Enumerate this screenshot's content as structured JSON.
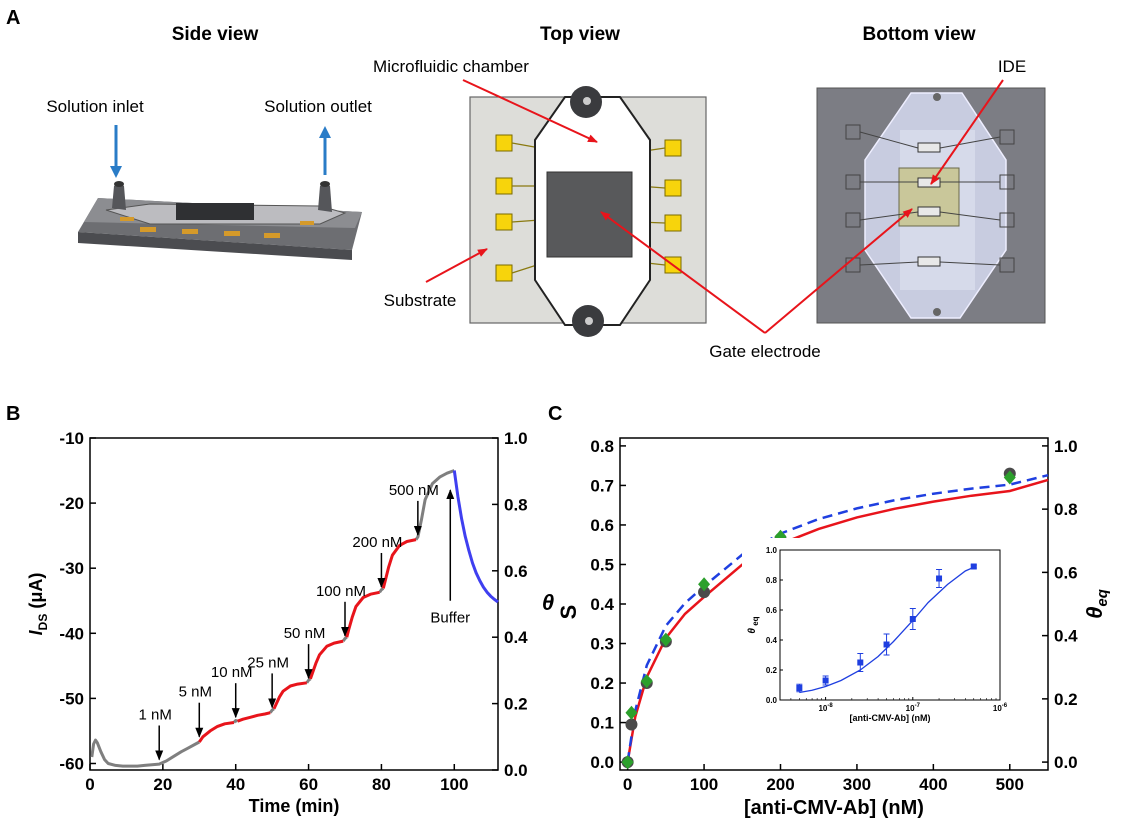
{
  "panel_a": {
    "label": "A",
    "side_view": {
      "title": "Side view",
      "inlet": "Solution inlet",
      "outlet": "Solution outlet"
    },
    "top_view": {
      "title": "Top view",
      "chamber": "Microfluidic chamber",
      "substrate": "Substrate",
      "gate": "Gate electrode"
    },
    "bottom_view": {
      "title": "Bottom view",
      "ide": "IDE"
    }
  },
  "panel_b": {
    "label": "B"
  },
  "panel_c": {
    "label": "C"
  },
  "chart_data": [
    {
      "type": "line",
      "panel": "B",
      "xlabel": "Time (min)",
      "ylabel_main": "I",
      "ylabel_sub": "DS",
      "ylabel_unit": " (μA)",
      "ylabel_right": "θ",
      "xlim": [
        0,
        112
      ],
      "ylim": [
        -61,
        -10
      ],
      "y2lim": [
        0,
        1.0
      ],
      "x_ticks": [
        "0",
        "20",
        "40",
        "60",
        "80",
        "100"
      ],
      "x_tick_values": [
        0,
        20,
        40,
        60,
        80,
        100
      ],
      "y_ticks": [
        "-60",
        "-50",
        "-40",
        "-30",
        "-20",
        "-10"
      ],
      "y_tick_values": [
        -60,
        -50,
        -40,
        -30,
        -20,
        -10
      ],
      "y2_ticks": [
        "0.0",
        "0.2",
        "0.4",
        "0.6",
        "0.8",
        "1.0"
      ],
      "y2_tick_values": [
        0,
        0.2,
        0.4,
        0.6,
        0.8,
        1.0
      ],
      "annotations": [
        {
          "text": "1 nM",
          "x": 19,
          "y": -60.0
        },
        {
          "text": "5 nM",
          "x": 30,
          "y": -56.5
        },
        {
          "text": "10 nM",
          "x": 40,
          "y": -53.5
        },
        {
          "text": "25 nM",
          "x": 50,
          "y": -52.0
        },
        {
          "text": "50 nM",
          "x": 60,
          "y": -47.5
        },
        {
          "text": "100 nM",
          "x": 70,
          "y": -41.0
        },
        {
          "text": "200 nM",
          "x": 80,
          "y": -33.5
        },
        {
          "text": "500 nM",
          "x": 90,
          "y": -25.5
        },
        {
          "text": "Buffer",
          "x": 100,
          "y": -17
        }
      ],
      "series": [
        {
          "color": "#7f7f7f",
          "segments": [
            [
              [
                0.5,
                -59
              ],
              [
                1,
                -57
              ],
              [
                1.5,
                -56.4
              ],
              [
                2,
                -56.8
              ],
              [
                3,
                -58.2
              ],
              [
                4,
                -59.4
              ],
              [
                5,
                -60.0
              ],
              [
                7,
                -60.3
              ],
              [
                9,
                -60.4
              ],
              [
                11,
                -60.4
              ],
              [
                13,
                -60.4
              ],
              [
                15,
                -60.3
              ],
              [
                17,
                -60.2
              ],
              [
                19,
                -60.1
              ],
              [
                21,
                -59.6
              ],
              [
                23,
                -58.9
              ],
              [
                25,
                -58.2
              ],
              [
                27,
                -57.6
              ],
              [
                29,
                -57.0
              ],
              [
                30,
                -56.7
              ]
            ],
            [
              [
                39.5,
                -53.7
              ],
              [
                40,
                -53.4
              ],
              [
                40.5,
                -53.5
              ]
            ],
            [
              [
                49.5,
                -52.2
              ],
              [
                50,
                -51.8
              ],
              [
                50.5,
                -51.6
              ]
            ],
            [
              [
                59.5,
                -47.6
              ],
              [
                60,
                -47.2
              ],
              [
                60.5,
                -47.0
              ]
            ],
            [
              [
                69.5,
                -41.2
              ],
              [
                70,
                -40.8
              ],
              [
                70.5,
                -40.6
              ]
            ],
            [
              [
                79.5,
                -33.7
              ],
              [
                80,
                -33.3
              ],
              [
                80.5,
                -33.1
              ]
            ],
            [
              [
                89.5,
                -25.6
              ],
              [
                90,
                -25.2
              ],
              [
                91,
                -22.5
              ],
              [
                92,
                -19.5
              ],
              [
                94,
                -17.0
              ],
              [
                96,
                -16.0
              ],
              [
                98,
                -15.4
              ],
              [
                100,
                -15.0
              ]
            ]
          ]
        },
        {
          "color": "#e8141b",
          "segments": [
            [
              [
                30,
                -56.7
              ],
              [
                31,
                -55.9
              ],
              [
                33,
                -55.0
              ],
              [
                35,
                -54.3
              ],
              [
                37,
                -53.9
              ],
              [
                39.5,
                -53.7
              ]
            ],
            [
              [
                40.5,
                -53.5
              ],
              [
                42,
                -53.2
              ],
              [
                44,
                -52.9
              ],
              [
                46,
                -52.6
              ],
              [
                48,
                -52.4
              ],
              [
                49.5,
                -52.2
              ]
            ],
            [
              [
                50.5,
                -51.6
              ],
              [
                51,
                -51.0
              ],
              [
                52,
                -49.8
              ],
              [
                53,
                -48.9
              ],
              [
                55,
                -48.1
              ],
              [
                57,
                -47.8
              ],
              [
                59.5,
                -47.6
              ]
            ],
            [
              [
                60.5,
                -47.0
              ],
              [
                61,
                -46.2
              ],
              [
                62,
                -44.6
              ],
              [
                63,
                -43.3
              ],
              [
                65,
                -42.0
              ],
              [
                67,
                -41.5
              ],
              [
                69.5,
                -41.2
              ]
            ],
            [
              [
                70.5,
                -40.6
              ],
              [
                71,
                -39.5
              ],
              [
                72,
                -37.5
              ],
              [
                73,
                -35.9
              ],
              [
                75,
                -34.5
              ],
              [
                77,
                -34.0
              ],
              [
                79.5,
                -33.7
              ]
            ],
            [
              [
                80.5,
                -33.1
              ],
              [
                81,
                -32.0
              ],
              [
                82,
                -29.8
              ],
              [
                83,
                -28.0
              ],
              [
                85,
                -26.5
              ],
              [
                87,
                -25.9
              ],
              [
                89.5,
                -25.6
              ]
            ]
          ]
        },
        {
          "color": "#3f3ff0",
          "segments": [
            [
              [
                100,
                -15.0
              ],
              [
                101,
                -19.0
              ],
              [
                102,
                -22.4
              ],
              [
                103,
                -25.1
              ],
              [
                104,
                -27.3
              ],
              [
                105,
                -29.2
              ],
              [
                106,
                -30.7
              ],
              [
                107,
                -31.9
              ],
              [
                108,
                -32.9
              ],
              [
                109,
                -33.7
              ],
              [
                110,
                -34.3
              ],
              [
                111,
                -34.8
              ],
              [
                112,
                -35.2
              ]
            ]
          ]
        }
      ]
    },
    {
      "type": "scatter",
      "panel": "C",
      "xlabel": "[anti-CMV-Ab] (nM)",
      "ylabel": "S",
      "ylabel_right": "θ",
      "ylabel_right_sub": "eq",
      "xlim": [
        -10,
        550
      ],
      "ylim": [
        -0.02,
        0.82
      ],
      "y2lim": [
        -0.025,
        1.025
      ],
      "x_ticks": [
        "0",
        "100",
        "200",
        "300",
        "400",
        "500"
      ],
      "x_tick_values": [
        0,
        100,
        200,
        300,
        400,
        500
      ],
      "y_ticks": [
        "0.0",
        "0.1",
        "0.2",
        "0.3",
        "0.4",
        "0.5",
        "0.6",
        "0.7",
        "0.8"
      ],
      "y_tick_values": [
        0,
        0.1,
        0.2,
        0.3,
        0.4,
        0.5,
        0.6,
        0.7,
        0.8
      ],
      "y2_ticks": [
        "0.0",
        "0.2",
        "0.4",
        "0.6",
        "0.8",
        "1.0"
      ],
      "y2_tick_values": [
        0,
        0.2,
        0.4,
        0.6,
        0.8,
        1.0
      ],
      "series": [
        {
          "marker": "circle",
          "color": "#4a4a4a",
          "x": [
            0,
            5,
            25,
            50,
            100,
            200,
            500
          ],
          "y": [
            0.0,
            0.095,
            0.2,
            0.305,
            0.43,
            0.565,
            0.73
          ]
        },
        {
          "marker": "diamond",
          "color": "#2ca02c",
          "x": [
            0,
            5,
            25,
            50,
            100,
            200,
            500
          ],
          "y": [
            0.0,
            0.125,
            0.205,
            0.31,
            0.45,
            0.57,
            0.72
          ]
        },
        {
          "line": "solid",
          "color": "#e8141b",
          "x": [
            0,
            10,
            25,
            50,
            75,
            100,
            150,
            200,
            250,
            300,
            350,
            400,
            450,
            500,
            550
          ],
          "y": [
            0,
            0.115,
            0.215,
            0.314,
            0.375,
            0.418,
            0.5,
            0.552,
            0.59,
            0.619,
            0.641,
            0.659,
            0.674,
            0.686,
            0.714
          ]
        },
        {
          "line": "dashed",
          "color": "#1f3fe0",
          "x": [
            0,
            10,
            25,
            50,
            75,
            100,
            150,
            200,
            250,
            300,
            350,
            400,
            450,
            500,
            550
          ],
          "y": [
            0,
            0.13,
            0.245,
            0.345,
            0.402,
            0.445,
            0.525,
            0.578,
            0.615,
            0.642,
            0.663,
            0.679,
            0.692,
            0.702,
            0.726
          ]
        }
      ],
      "inset": {
        "xlabel": "[anti-CMV-Ab] (nM)",
        "ylabel": "θ",
        "ylabel_sub": "eq",
        "xscale": "log",
        "xlim": [
          3e-09,
          1e-06
        ],
        "ylim": [
          0,
          1.0
        ],
        "x_tick_values": [
          1e-08,
          1e-07,
          1e-06
        ],
        "x_ticks_base": [
          "10",
          "10",
          "10"
        ],
        "x_ticks_exp": [
          "-8",
          "-7",
          "-6"
        ],
        "y_ticks": [
          "0.0",
          "0.2",
          "0.4",
          "0.6",
          "0.8",
          "1.0"
        ],
        "y_tick_values": [
          0,
          0.2,
          0.4,
          0.6,
          0.8,
          1.0
        ],
        "points": {
          "marker": "square",
          "color": "#1f3fe0",
          "x": [
            5e-09,
            1e-08,
            2.5e-08,
            5e-08,
            1e-07,
            2e-07,
            5e-07
          ],
          "y": [
            0.08,
            0.13,
            0.25,
            0.37,
            0.54,
            0.81,
            0.89
          ],
          "err": [
            0.025,
            0.03,
            0.06,
            0.07,
            0.07,
            0.06,
            0.01
          ]
        },
        "fit": {
          "color": "#1f3fe0",
          "x": [
            5e-09,
            7e-09,
            1e-08,
            1.5e-08,
            2.5e-08,
            4e-08,
            6e-08,
            1e-07,
            1.5e-07,
            2.5e-07,
            4e-07,
            5e-07
          ],
          "y": [
            0.05,
            0.065,
            0.09,
            0.13,
            0.2,
            0.29,
            0.39,
            0.53,
            0.65,
            0.77,
            0.86,
            0.885
          ]
        }
      }
    }
  ]
}
